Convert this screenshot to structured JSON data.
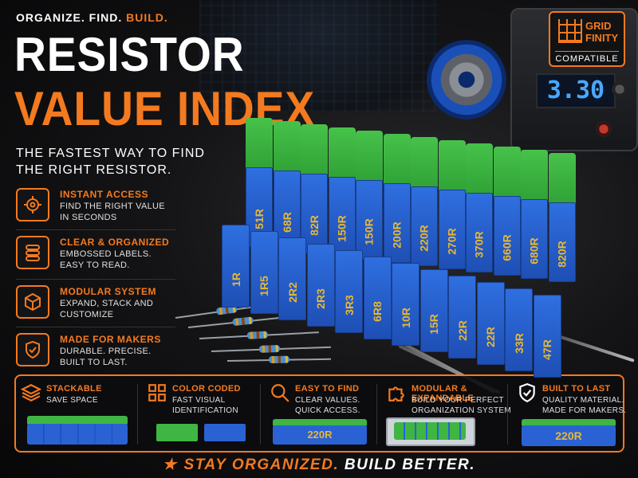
{
  "header": {
    "tagline_part1": "ORGANIZE. FIND.",
    "tagline_part2": "BUILD.",
    "title_line1": "RESISTOR",
    "title_line2": "VALUE INDEX",
    "subtitle": "THE FASTEST WAY TO FIND THE RIGHT RESISTOR."
  },
  "badge": {
    "brand": "GRID FINITY",
    "label": "COMPATIBLE"
  },
  "meter": {
    "reading": "3.30"
  },
  "features": [
    {
      "icon": "crosshair-icon",
      "title": "INSTANT ACCESS",
      "line1": "FIND THE RIGHT VALUE",
      "line2": "IN SECONDS"
    },
    {
      "icon": "stack-layers-icon",
      "title": "CLEAR & ORGANIZED",
      "line1": "EMBOSSED LABELS.",
      "line2": "EASY TO READ."
    },
    {
      "icon": "cube-icon",
      "title": "MODULAR SYSTEM",
      "line1": "EXPAND, STACK AND",
      "line2": "CUSTOMIZE"
    },
    {
      "icon": "shield-check-icon",
      "title": "MADE FOR MAKERS",
      "line1": "DURABLE. PRECISE.",
      "line2": "BUILT TO LAST."
    }
  ],
  "bins": {
    "top_row": [
      "51R",
      "68R",
      "82R",
      "150R",
      "150R",
      "200R",
      "220R",
      "270R",
      "370R",
      "660R",
      "680R",
      "820R"
    ],
    "bottom_row": [
      "1R",
      "1R5",
      "2R2",
      "2R3",
      "3R3",
      "6R8",
      "10R",
      "15R",
      "22R",
      "22R",
      "33R",
      "47R"
    ],
    "colors": {
      "top": "#3fb544",
      "face": "#2a62d4",
      "label": "#e8b734"
    }
  },
  "benefits": [
    {
      "icon": "layers-icon",
      "title": "STACKABLE",
      "line1": "SAVE SPACE",
      "line2": ""
    },
    {
      "icon": "grid-icon",
      "title": "COLOR CODED",
      "line1": "FAST VISUAL",
      "line2": "IDENTIFICATION"
    },
    {
      "icon": "search-icon",
      "title": "EASY TO FIND",
      "line1": "CLEAR VALUES.",
      "line2": "QUICK ACCESS.",
      "sample": "220R"
    },
    {
      "icon": "puzzle-icon",
      "title": "MODULAR & EXPANDABLE",
      "line1": "BUILD YOUR PERFECT",
      "line2": "ORGANIZATION SYSTEM"
    },
    {
      "icon": "shield-check-icon",
      "title": "BUILT TO LAST",
      "line1": "QUALITY MATERIAL.",
      "line2": "MADE FOR MAKERS.",
      "sample": "220R"
    }
  ],
  "footer": {
    "part1": "STAY ORGANIZED.",
    "part2": "BUILD BETTER."
  },
  "accent_color": "#f47a1f"
}
